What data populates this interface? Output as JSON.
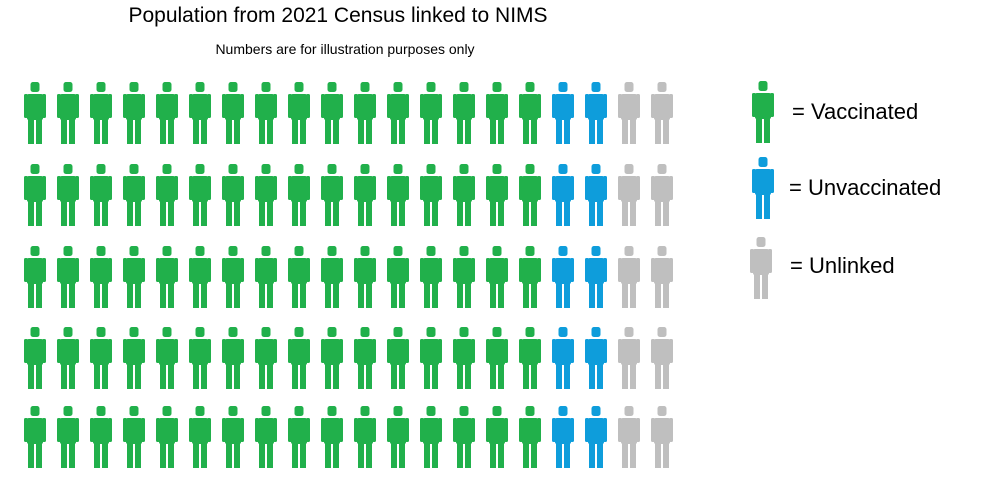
{
  "chart_data": {
    "type": "pictograph",
    "title": "Population from 2021 Census linked to NIMS",
    "subtitle": "Numbers are for illustration purposes only",
    "rows": 5,
    "columns": 20,
    "categories": [
      "Vaccinated",
      "Unvaccinated",
      "Unlinked"
    ],
    "values": [
      80,
      10,
      10
    ],
    "icons_per_row": {
      "Vaccinated": 16,
      "Unvaccinated": 2,
      "Unlinked": 2
    },
    "series": [
      {
        "name": "Vaccinated",
        "legend_label": "= Vaccinated",
        "color": "#21b04b",
        "count": 80
      },
      {
        "name": "Unvaccinated",
        "legend_label": "= Unvaccinated",
        "color": "#0e9ddb",
        "count": 10
      },
      {
        "name": "Unlinked",
        "legend_label": "= Unlinked",
        "color": "#bfbfbf",
        "count": 10
      }
    ],
    "icon": "person-icon",
    "legend_position": "right"
  }
}
